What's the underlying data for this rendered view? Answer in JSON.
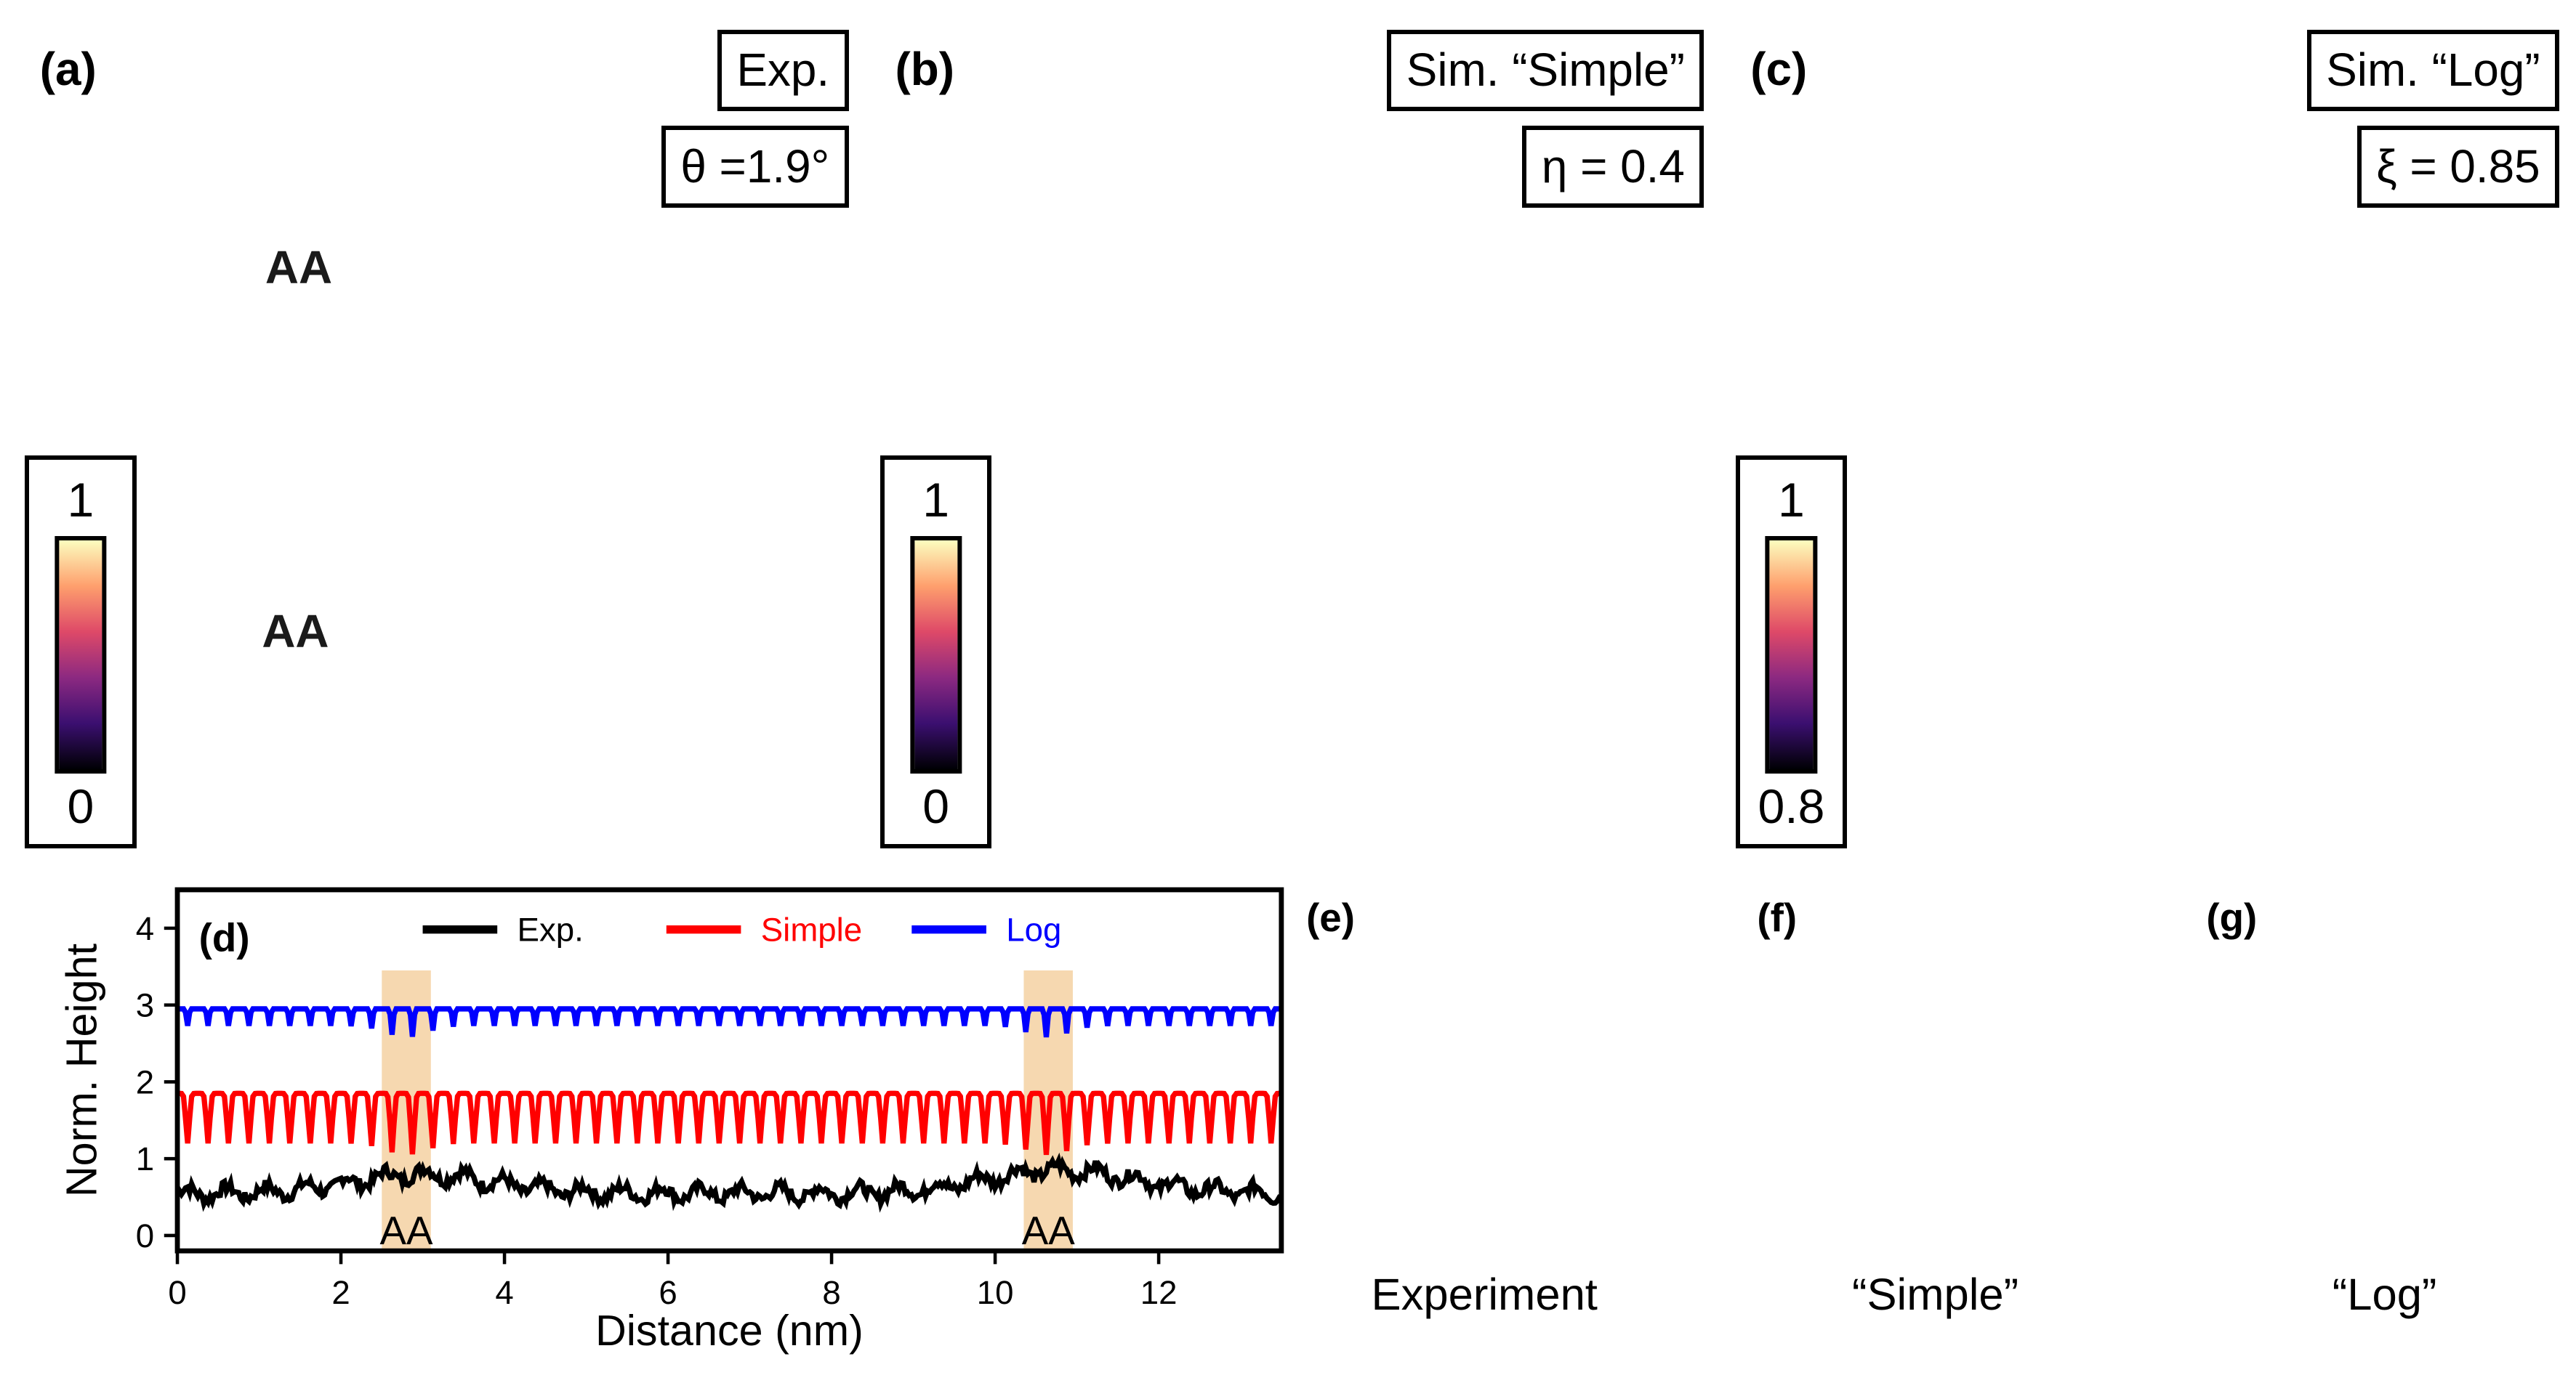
{
  "panels": {
    "a": {
      "label": "(a)",
      "title": "Exp.",
      "param": "θ =1.9°",
      "colorbar": {
        "max": "1",
        "min": "0"
      },
      "annotations": [
        "AA",
        "AA"
      ]
    },
    "b": {
      "label": "(b)",
      "title": "Sim. “Simple”",
      "param": "η = 0.4",
      "colorbar": {
        "max": "1",
        "min": "0"
      }
    },
    "c": {
      "label": "(c)",
      "title": "Sim. “Log”",
      "param": "ξ = 0.85",
      "colorbar": {
        "max": "1",
        "min": "0.8"
      }
    },
    "e": {
      "label": "(e)",
      "caption": "Experiment"
    },
    "f": {
      "label": "(f)",
      "caption": "“Simple”"
    },
    "g": {
      "label": "(g)",
      "caption": "“Log”"
    }
  },
  "chart_data": {
    "type": "line",
    "panel_label": "(d)",
    "xlabel": "Distance (nm)",
    "ylabel": "Norm. Height",
    "xlim": [
      0,
      13.5
    ],
    "ylim": [
      -0.2,
      4.5
    ],
    "xticks": [
      "0",
      "2",
      "4",
      "6",
      "8",
      "10",
      "12"
    ],
    "yticks": [
      "0",
      "1",
      "2",
      "3",
      "4"
    ],
    "legend": [
      "Exp.",
      "Simple",
      "Log"
    ],
    "colors": {
      "exp": "#000000",
      "simple": "#ff0000",
      "log": "#0000ff",
      "highlight": "#f6d8b0"
    },
    "highlight_regions": [
      {
        "label": "AA",
        "x": [
          2.5,
          3.1
        ]
      },
      {
        "label": "AA",
        "x": [
          10.35,
          10.95
        ]
      }
    ],
    "series": [
      {
        "name": "Exp.",
        "baseline": 0.55,
        "description": "noisy profile, peaks near AA sites (~0.85) and 11.5 nm (~1.0)"
      },
      {
        "name": "Simple",
        "baseline": 1.8,
        "min": 1.1,
        "max": 1.95,
        "period_nm": 0.25
      },
      {
        "name": "Log",
        "baseline": 2.95,
        "min": 2.6,
        "max": 3.0,
        "period_nm": 0.25
      }
    ]
  }
}
